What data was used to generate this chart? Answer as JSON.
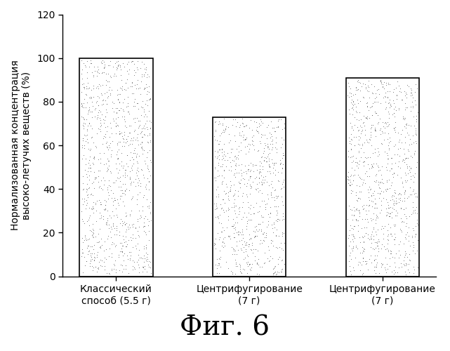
{
  "categories": [
    "Классический\nспособ (5.5 г)",
    "Центрифугирование\n(7 г)",
    "Центрифугирование\n(7 г)"
  ],
  "values": [
    100,
    73,
    91
  ],
  "bar_color": "#ffffff",
  "bar_edge_color": "#000000",
  "ylabel_line1": "Нормализованная концентрация",
  "ylabel_line2": "высоко-летучих веществ (%)",
  "ylim": [
    0,
    120
  ],
  "yticks": [
    0,
    20,
    40,
    60,
    80,
    100,
    120
  ],
  "figure_title": "Фиг. 6",
  "background_color": "#ffffff",
  "bar_width": 0.55,
  "title_fontsize": 28,
  "tick_fontsize": 10,
  "ylabel_fontsize": 10,
  "xlabel_fontsize": 10,
  "dot_density": 2200,
  "dot_size": 1.5
}
